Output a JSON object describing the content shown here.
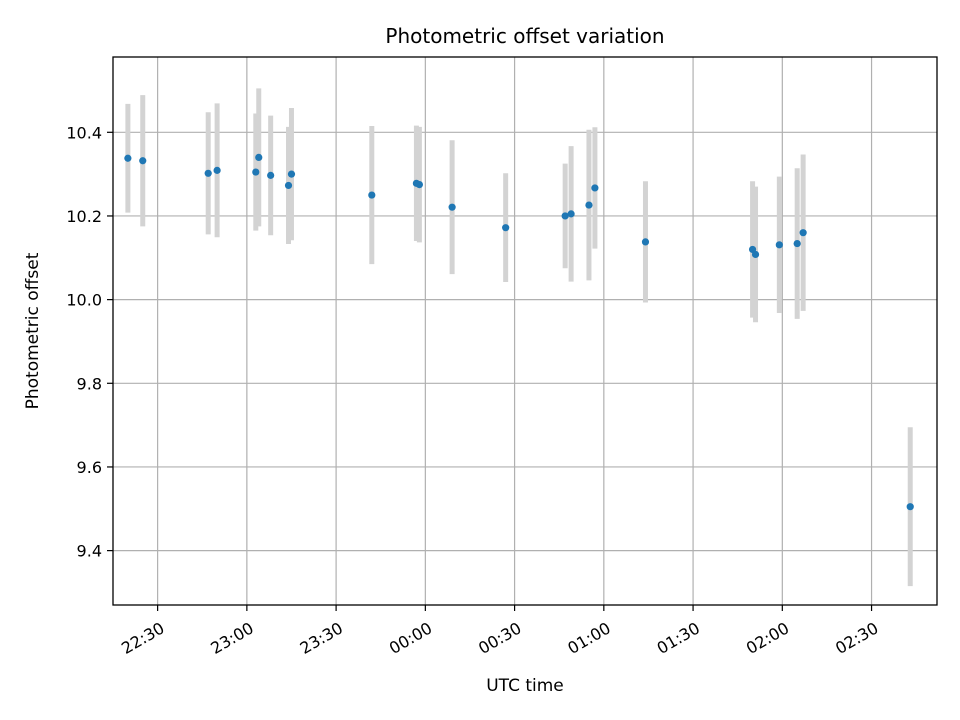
{
  "chart_data": {
    "type": "scatter",
    "title": "Photometric offset variation",
    "xlabel": "UTC time",
    "ylabel": "Photometric offset",
    "grid": true,
    "x_range": [
      "22:15",
      "02:52"
    ],
    "ylim": [
      9.27,
      10.58
    ],
    "x_ticks": [
      "22:30",
      "23:00",
      "23:30",
      "00:00",
      "00:30",
      "01:00",
      "01:30",
      "02:00",
      "02:30"
    ],
    "y_ticks": [
      9.4,
      9.6,
      9.8,
      10.0,
      10.2,
      10.4
    ],
    "y_tick_labels": [
      "9.4",
      "9.6",
      "9.8",
      "10.0",
      "10.2",
      "10.4"
    ],
    "colors": {
      "point": "#1f77b4",
      "error_bar": "#d3d3d3",
      "grid": "#b0b0b0"
    },
    "series": [
      {
        "points": [
          {
            "time": "22:20",
            "y": 10.338,
            "err": 0.13
          },
          {
            "time": "22:25",
            "y": 10.332,
            "err": 0.157
          },
          {
            "time": "22:47",
            "y": 10.302,
            "err": 0.146
          },
          {
            "time": "22:50",
            "y": 10.309,
            "err": 0.16
          },
          {
            "time": "23:03",
            "y": 10.305,
            "err": 0.14
          },
          {
            "time": "23:04",
            "y": 10.34,
            "err": 0.165
          },
          {
            "time": "23:08",
            "y": 10.297,
            "err": 0.143
          },
          {
            "time": "23:14",
            "y": 10.273,
            "err": 0.14
          },
          {
            "time": "23:15",
            "y": 10.3,
            "err": 0.158
          },
          {
            "time": "23:42",
            "y": 10.25,
            "err": 0.165
          },
          {
            "time": "23:57",
            "y": 10.278,
            "err": 0.138
          },
          {
            "time": "23:58",
            "y": 10.275,
            "err": 0.138
          },
          {
            "time": "00:09",
            "y": 10.221,
            "err": 0.16
          },
          {
            "time": "00:27",
            "y": 10.172,
            "err": 0.13
          },
          {
            "time": "00:47",
            "y": 10.2,
            "err": 0.125
          },
          {
            "time": "00:49",
            "y": 10.205,
            "err": 0.162
          },
          {
            "time": "00:55",
            "y": 10.226,
            "err": 0.18
          },
          {
            "time": "00:57",
            "y": 10.267,
            "err": 0.145
          },
          {
            "time": "01:14",
            "y": 10.138,
            "err": 0.145
          },
          {
            "time": "01:50",
            "y": 10.12,
            "err": 0.163
          },
          {
            "time": "01:51",
            "y": 10.108,
            "err": 0.162
          },
          {
            "time": "01:59",
            "y": 10.131,
            "err": 0.163
          },
          {
            "time": "02:05",
            "y": 10.134,
            "err": 0.18
          },
          {
            "time": "02:07",
            "y": 10.16,
            "err": 0.187
          },
          {
            "time": "02:43",
            "y": 9.505,
            "err": 0.19
          }
        ]
      }
    ]
  }
}
